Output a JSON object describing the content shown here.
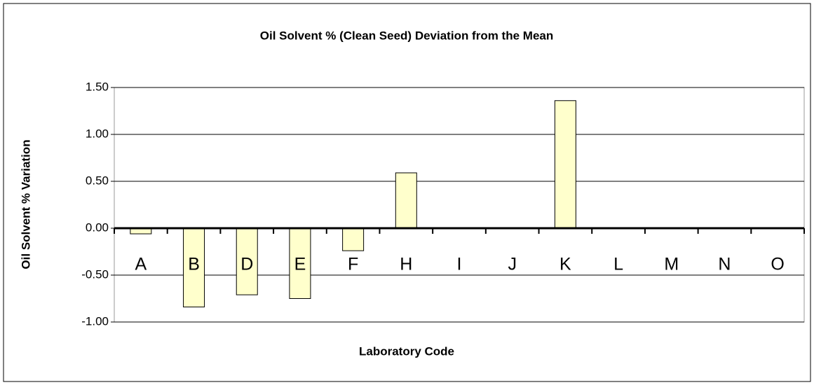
{
  "chart_data": {
    "type": "bar",
    "title": "Oil Solvent % (Clean Seed) Deviation from the Mean",
    "x_label": "Laboratory Code",
    "y_label": "Oil Solvent % Variation",
    "categories": [
      "A",
      "B",
      "D",
      "E",
      "F",
      "H",
      "I",
      "J",
      "K",
      "L",
      "M",
      "N",
      "O"
    ],
    "values": [
      -0.06,
      -0.84,
      -0.71,
      -0.75,
      -0.24,
      0.59,
      null,
      null,
      1.36,
      null,
      null,
      null,
      null
    ],
    "color": "#ffffcc",
    "ylim": [
      -1.0,
      1.5
    ],
    "yticks": [
      {
        "value": -1.0,
        "label": "-1.00"
      },
      {
        "value": -0.5,
        "label": "-0.50"
      },
      {
        "value": 0,
        "label": "0.00"
      },
      {
        "value": 0.5,
        "label": "0.50"
      },
      {
        "value": 1.0,
        "label": "1.00"
      },
      {
        "value": 1.5,
        "label": "1.50"
      }
    ],
    "grid": true
  }
}
